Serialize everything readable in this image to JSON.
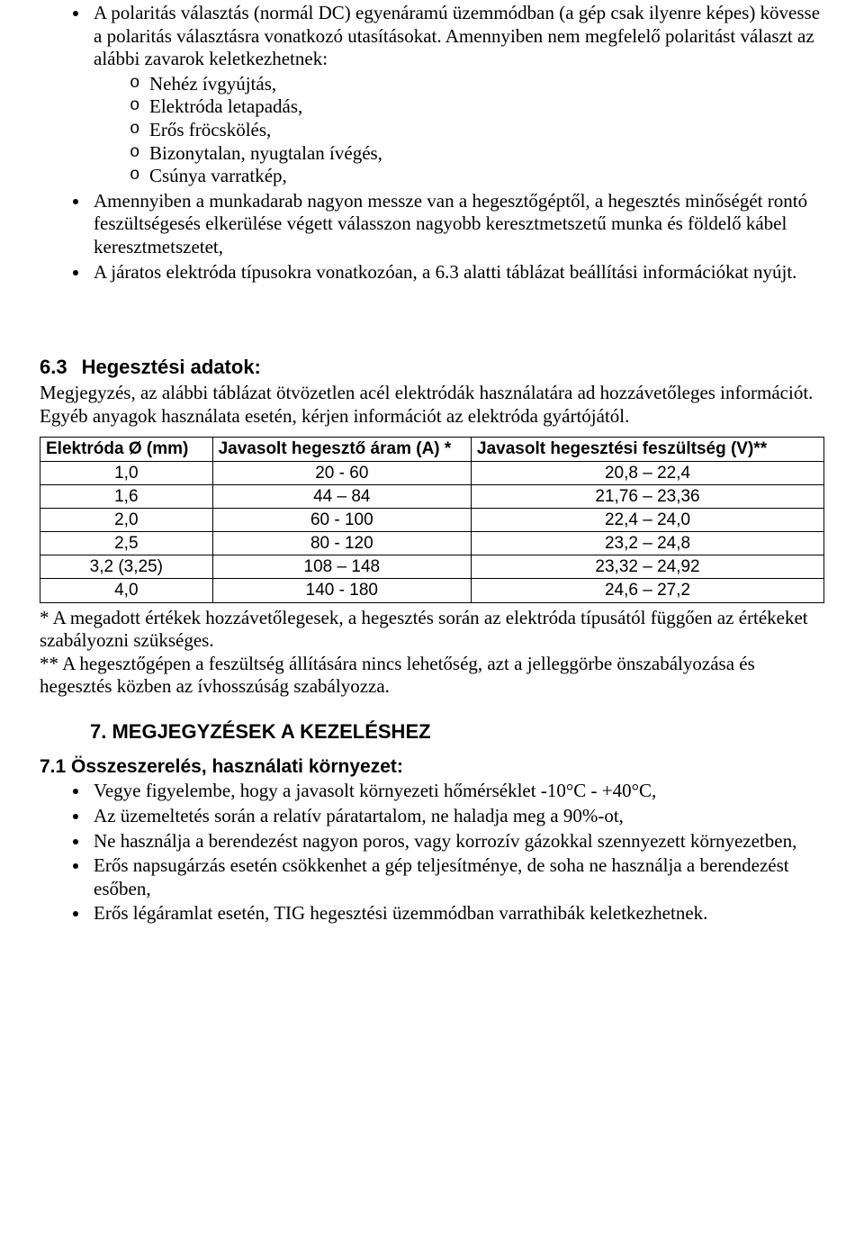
{
  "top_bullets": [
    {
      "text": "A polaritás választás (normál DC) egyenáramú üzemmódban (a gép csak ilyenre képes) kövesse a polaritás választásra vonatkozó utasításokat. Amennyiben nem megfelelő polaritást választ az alábbi zavarok keletkezhetnek:",
      "sub": [
        "Nehéz ívgyújtás,",
        "Elektróda letapadás,",
        "Erős fröcskölés,",
        "Bizonytalan, nyugtalan ívégés,",
        "Csúnya varratkép,"
      ]
    },
    {
      "text": "Amennyiben a munkadarab nagyon messze van a hegesztőgéptől, a hegesztés minőségét rontó feszültségesés elkerülése végett válasszon nagyobb keresztmetszetű munka és földelő kábel keresztmetszetet,"
    },
    {
      "text": "A járatos elektróda típusokra vonatkozóan, a 6.3 alatti táblázat beállítási információkat nyújt."
    }
  ],
  "section_6_3": {
    "number": "6.3",
    "title": "Hegesztési adatok:",
    "intro": "Megjegyzés, az alábbi táblázat ötvözetlen acél elektródák használatára ad hozzávetőleges információt. Egyéb anyagok használata esetén, kérjen információt az elektróda gyártójától.",
    "table": {
      "columns": [
        "Elektróda Ø (mm)",
        "Javasolt hegesztő áram (A) *",
        "Javasolt hegesztési feszültség (V)**"
      ],
      "rows": [
        [
          "1,0",
          "20 - 60",
          "20,8 – 22,4"
        ],
        [
          "1,6",
          "44 – 84",
          "21,76 – 23,36"
        ],
        [
          "2,0",
          "60 - 100",
          "22,4 – 24,0"
        ],
        [
          "2,5",
          "80 - 120",
          "23,2 – 24,8"
        ],
        [
          "3,2 (3,25)",
          "108 – 148",
          "23,32 – 24,92"
        ],
        [
          "4,0",
          "140 - 180",
          "24,6 – 27,2"
        ]
      ]
    },
    "footnotes": [
      "* A megadott értékek hozzávetőlegesek, a hegesztés során az elektróda típusától függően az értékeket szabályozni szükséges.",
      "** A hegesztőgépen a feszültség állítására nincs lehetőség, azt a jelleggörbe önszabályozása és hegesztés közben az ívhosszúság szabályozza."
    ]
  },
  "section_7": {
    "heading": "7. MEGJEGYZÉSEK A KEZELÉSHEZ",
    "sub": {
      "title": "7.1 Összeszerelés, használati környezet:",
      "items": [
        "Vegye figyelembe, hogy a javasolt környezeti hőmérséklet -10°C - +40°C,",
        "Az üzemeltetés során a relatív páratartalom, ne haladja meg a 90%-ot,",
        "Ne használja a berendezést nagyon poros, vagy korrozív gázokkal szennyezett környezetben,",
        "Erős napsugárzás esetén csökkenhet a gép teljesítménye, de soha ne használja a berendezést esőben,",
        "Erős légáramlat esetén, TIG hegesztési üzemmódban varrathibák keletkezhetnek."
      ]
    }
  }
}
